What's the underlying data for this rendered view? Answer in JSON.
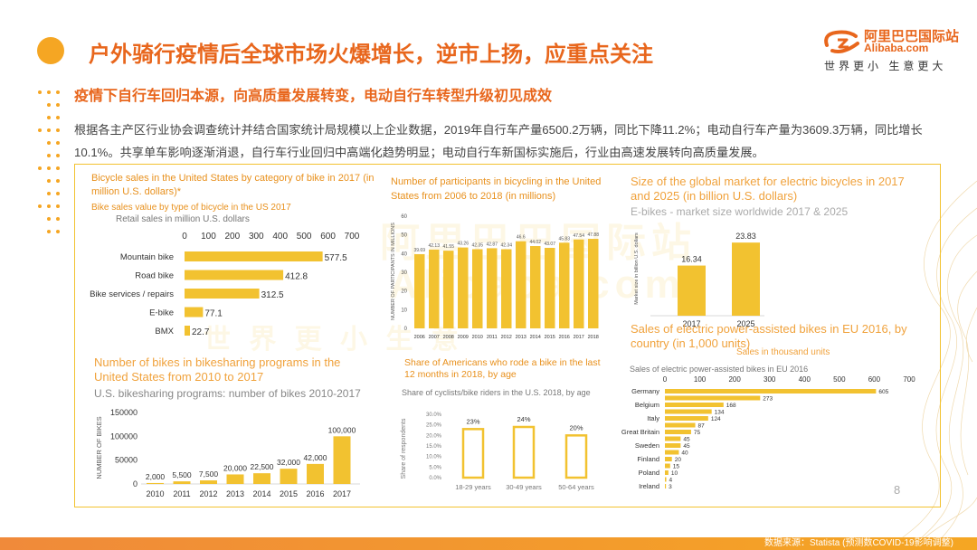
{
  "header": {
    "title": "户外骑行疫情后全球市场火爆增长，逆市上扬，应重点关注",
    "subtitle": "疫情下自行车回归本源，向高质量发展转变，电动自行车转型升级初见成效",
    "paragraph": "根据各主产区行业协会调查统计并结合国家统计局规模以上企业数据，2019年自行车产量6500.2万辆，同比下降11.2%；电动自行车产量为3609.3万辆，同比增长10.1%。共享单车影响逐渐消退，自行车行业回归中高端化趋势明显；电动自行车新国标实施后，行业由高速发展转向高质量发展。"
  },
  "logo": {
    "line1": "阿里巴巴国际站",
    "line2": "Alibaba.com",
    "slogan": "世界更小 生意更大"
  },
  "watermark": {
    "cn": "阿里巴巴国际站",
    "en": "Alibaba.com",
    "slogan": "世 界 更 小 生 意"
  },
  "page_number": "8",
  "footer": {
    "source": "数据来源：Statista (预测数COVID-19影响调整)"
  },
  "colors": {
    "accent": "#e8661c",
    "bar": "#f2c230",
    "frame": "#f2c230",
    "title_orange": "#e8901c"
  },
  "chart_data": [
    {
      "id": "bike-type-sales",
      "type": "bar",
      "orientation": "horizontal",
      "title": "Bicycle sales in the United States by category of bike in 2017 (in million U.S. dollars)*",
      "subtitle": "Bike sales value by type of bicycle in the US 2017",
      "note": "Retail sales in million U.S. dollars",
      "categories": [
        "Mountain bike",
        "Road bike",
        "Bike services / repairs",
        "E-bike",
        "BMX"
      ],
      "values": [
        577.5,
        412.8,
        312.5,
        77.1,
        22.7
      ],
      "value_labels": [
        "577.5",
        "412.8",
        "312.5",
        "77.1",
        "22.7"
      ],
      "xticks": [
        "0",
        "100",
        "200",
        "300",
        "400",
        "500",
        "600",
        "700"
      ],
      "xlim": [
        0,
        700
      ]
    },
    {
      "id": "cycling-participants",
      "type": "bar",
      "title": "Number of participants in bicycling in the United States from 2006 to 2018 (in millions)",
      "ylabel": "NUMBER OF PARTICIPANTS IN MILLIONS",
      "categories": [
        "2006",
        "2007",
        "2008",
        "2009",
        "2010",
        "2011",
        "2012",
        "2013",
        "2014",
        "2015",
        "2016",
        "2017",
        "2018"
      ],
      "values": [
        39.69,
        42.13,
        41.55,
        43.26,
        42.35,
        42.87,
        42.34,
        46.6,
        44.02,
        43.07,
        45.83,
        47.54,
        47.88
      ],
      "value_labels": [
        "39.69",
        "42.13",
        "41.55",
        "43.26",
        "42.35",
        "42.87",
        "42.34",
        "46.6",
        "44.02",
        "43.07",
        "45.83",
        "47.54",
        "47.88"
      ],
      "yticks": [
        "0",
        "10",
        "20",
        "30",
        "40",
        "50",
        "60"
      ],
      "ylim": [
        0,
        60
      ]
    },
    {
      "id": "ebike-global-market",
      "type": "bar",
      "title": "Size of the global market for electric bicycles in 2017 and 2025 (in billion U.S. dollars)",
      "subtitle": "E-bikes - market size worldwide 2017 & 2025",
      "ylabel": "Market size in billion U.S. dollars",
      "categories": [
        "2017",
        "2025"
      ],
      "values": [
        16.34,
        23.83
      ],
      "value_labels": [
        "16.34",
        "23.83"
      ],
      "ylim": [
        0,
        28
      ]
    },
    {
      "id": "eu-ebike-sales",
      "type": "bar",
      "orientation": "horizontal",
      "title": "Sales of electric power-assisted bikes in EU 2016, by country (in 1,000 units)",
      "unit_note": "Sales in thousand units",
      "subtitle": "Sales of electric power-assisted bikes in EU 2016",
      "categories": [
        "Germany",
        "",
        "Belgium",
        "",
        "Italy",
        "",
        "Great Britain",
        "",
        "Sweden",
        "",
        "Finland",
        "",
        "Poland",
        "",
        "Ireland"
      ],
      "values": [
        605,
        273,
        168,
        134,
        124,
        87,
        75,
        45,
        45,
        40,
        20,
        15,
        10,
        4,
        3
      ],
      "value_labels": [
        "605",
        "273",
        "168",
        "134",
        "124",
        "87",
        "75",
        "45",
        "45",
        "40",
        "20",
        "15",
        "10",
        "4",
        "3"
      ],
      "xticks": [
        "0",
        "100",
        "200",
        "300",
        "400",
        "500",
        "600",
        "700"
      ],
      "xlim": [
        0,
        700
      ]
    },
    {
      "id": "bikesharing-programs",
      "type": "bar",
      "title": "Number of bikes in bikesharing programs in the United States from 2010 to 2017",
      "subtitle": "U.S. bikesharing programs: number of bikes 2010-2017",
      "ylabel": "NUMBER OF BIKES",
      "categories": [
        "2010",
        "2011",
        "2012",
        "2013",
        "2014",
        "2015",
        "2016",
        "2017"
      ],
      "values": [
        2000,
        5500,
        7500,
        20000,
        22500,
        32000,
        42000,
        100000
      ],
      "value_labels": [
        "2,000",
        "5,500",
        "7,500",
        "20,000",
        "22,500",
        "32,000",
        "42,000",
        "100,000"
      ],
      "yticks": [
        "0",
        "50000",
        "100000",
        "150000"
      ],
      "ylim": [
        0,
        150000
      ]
    },
    {
      "id": "americans-rode-bike",
      "type": "bar",
      "title": "Share of Americans who rode a bike in the last 12 months in 2018, by age",
      "subtitle": "Share of cyclists/bike riders in the U.S. 2018, by age",
      "ylabel": "Share of respondents",
      "categories": [
        "18-29 years",
        "30-49 years",
        "50-64 years"
      ],
      "values": [
        23,
        24,
        20
      ],
      "value_labels": [
        "23%",
        "24%",
        "20%"
      ],
      "yticks": [
        "0.0%",
        "5.0%",
        "10.0%",
        "15.0%",
        "20.0%",
        "25.0%",
        "30.0%"
      ],
      "ylim": [
        0,
        30
      ]
    }
  ]
}
